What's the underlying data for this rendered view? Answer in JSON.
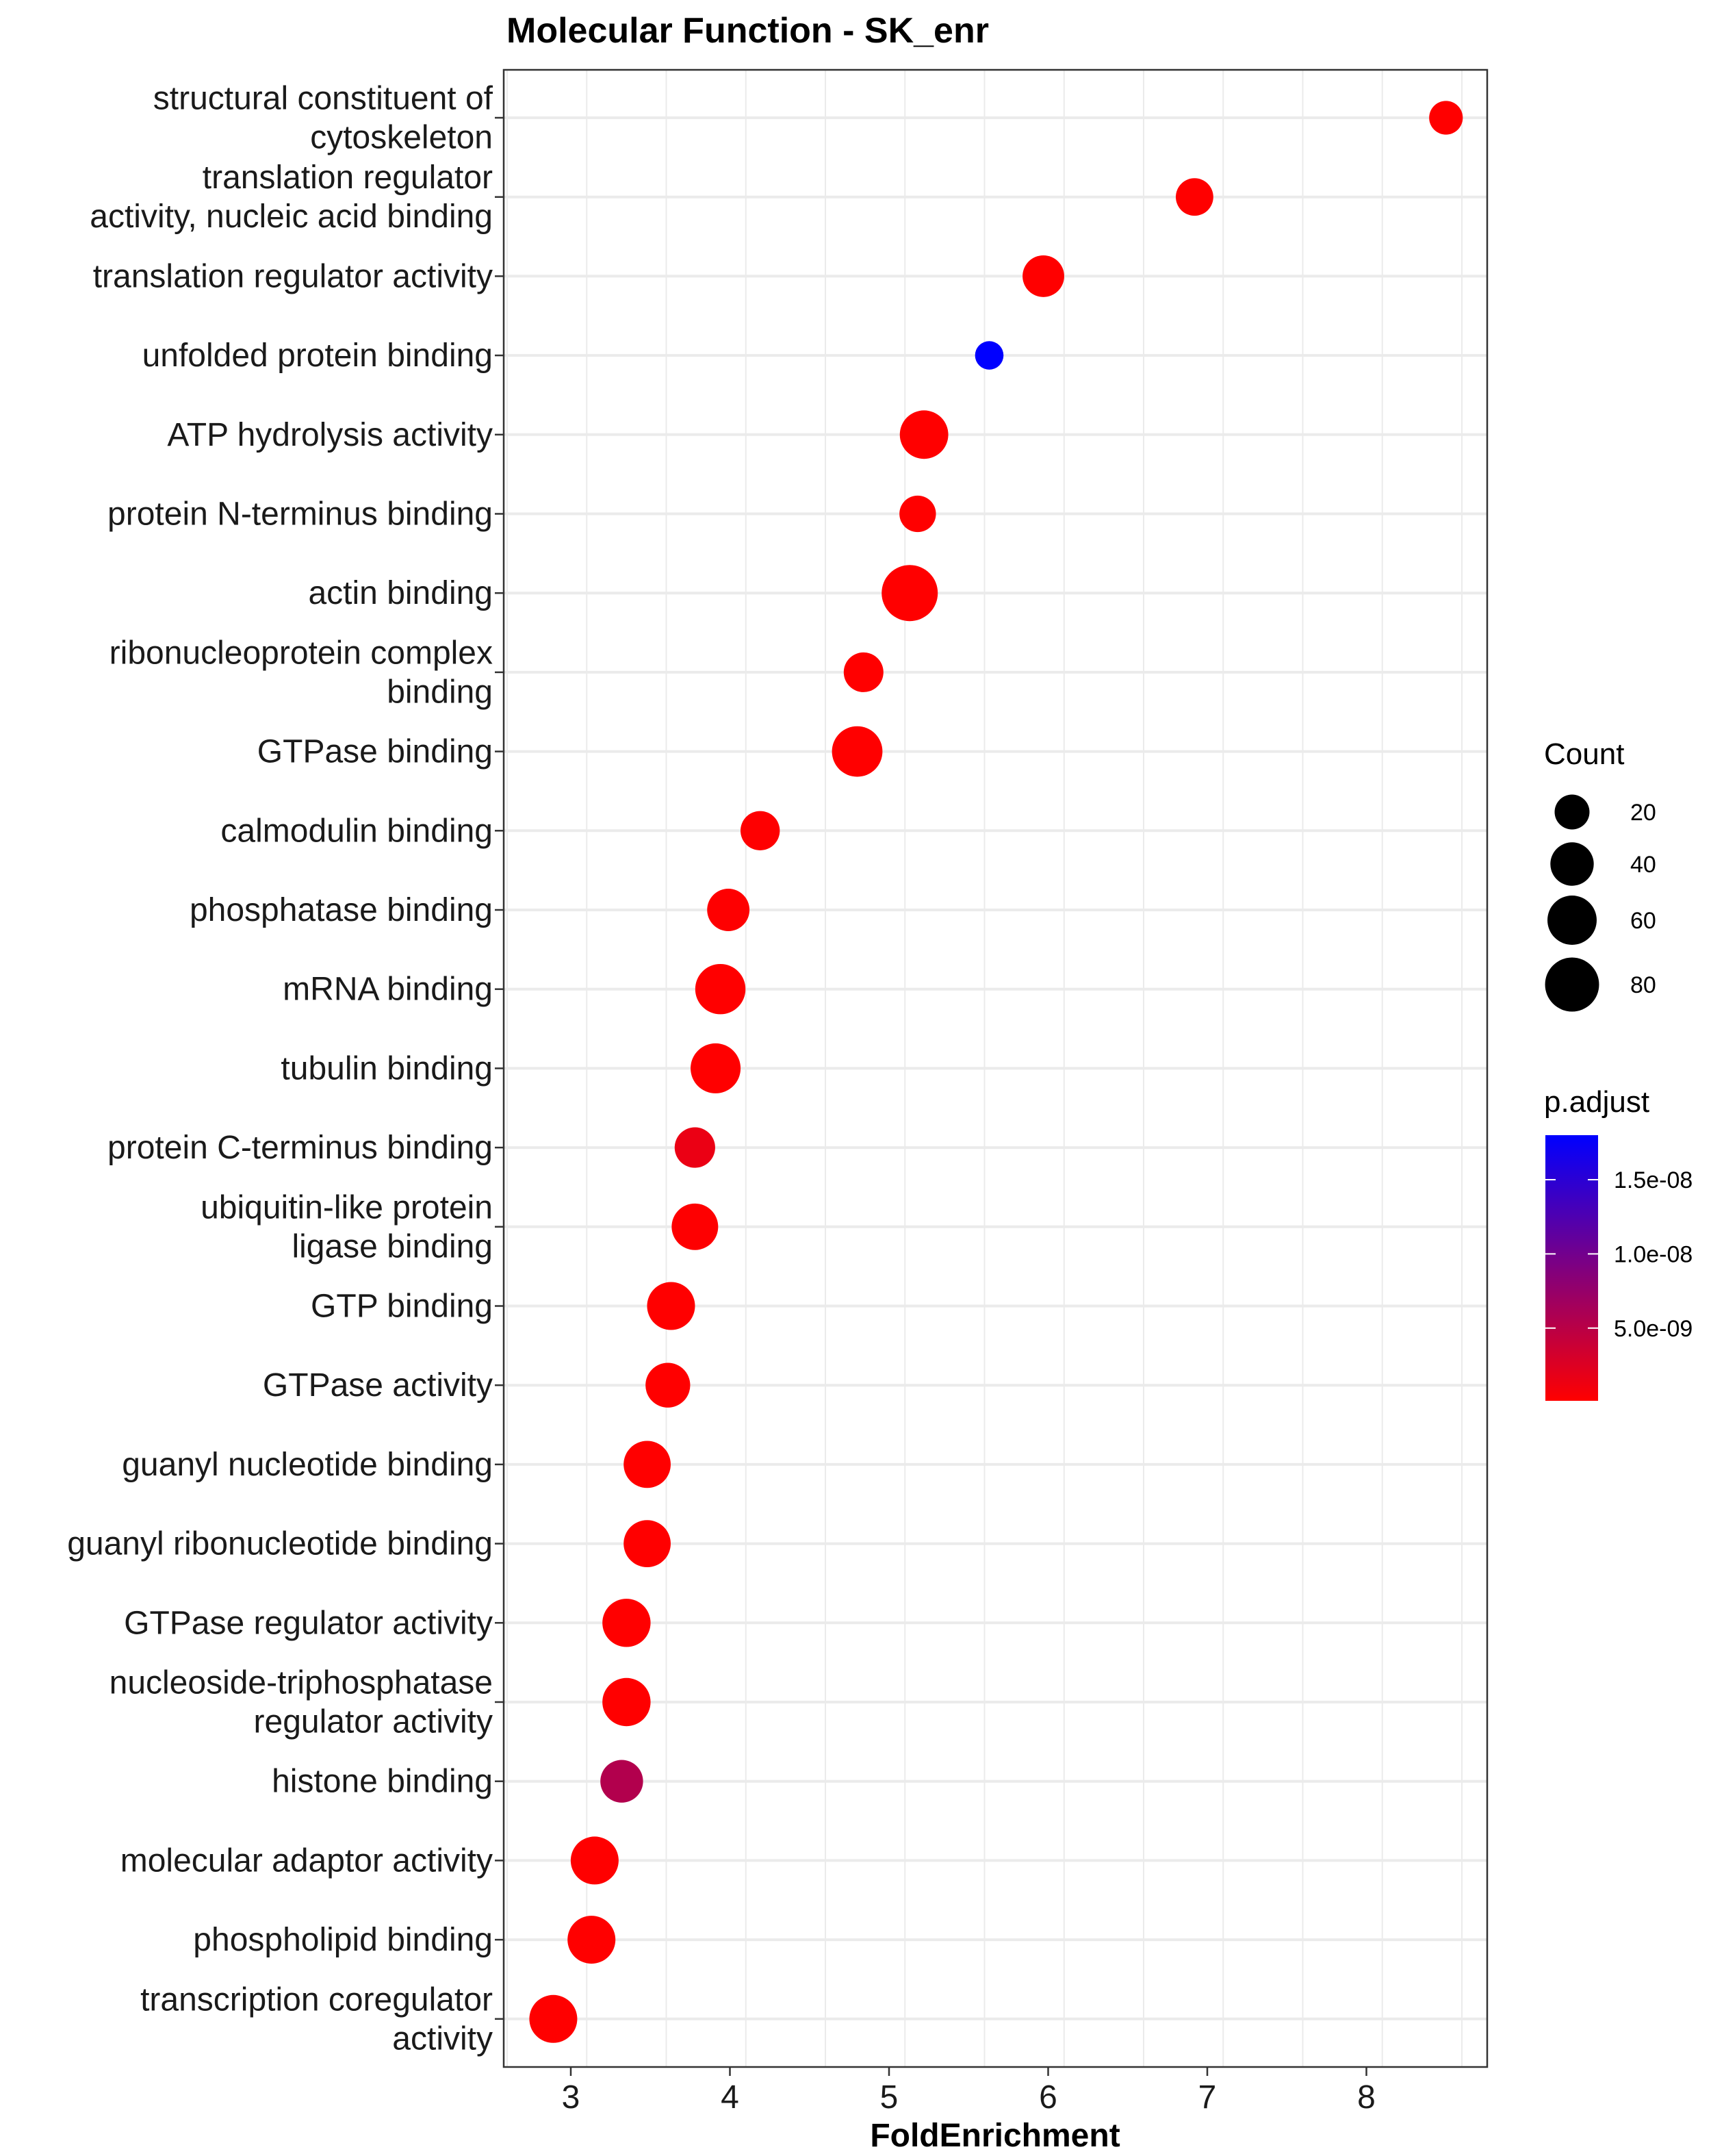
{
  "chart_data": {
    "type": "scatter",
    "title": "Molecular Function - SK_enr",
    "xlabel": "FoldEnrichment",
    "ylabel": "",
    "xlim": [
      2.6,
      8.8
    ],
    "xticks": [
      3,
      4,
      5,
      6,
      7,
      8
    ],
    "grid": true,
    "legend_position": "right",
    "categories": [
      [
        "structural constituent of",
        "cytoskeleton"
      ],
      [
        "translation regulator",
        "activity, nucleic acid binding"
      ],
      [
        "translation regulator activity"
      ],
      [
        "unfolded protein binding"
      ],
      [
        "ATP hydrolysis activity"
      ],
      [
        "protein N-terminus binding"
      ],
      [
        "actin binding"
      ],
      [
        "ribonucleoprotein complex",
        "binding"
      ],
      [
        "GTPase binding"
      ],
      [
        "calmodulin binding"
      ],
      [
        "phosphatase binding"
      ],
      [
        "mRNA binding"
      ],
      [
        "tubulin binding"
      ],
      [
        "protein C-terminus binding"
      ],
      [
        "ubiquitin-like protein",
        "ligase binding"
      ],
      [
        "GTP binding"
      ],
      [
        "GTPase activity"
      ],
      [
        "guanyl nucleotide binding"
      ],
      [
        "guanyl ribonucleotide binding"
      ],
      [
        "GTPase regulator activity"
      ],
      [
        "nucleoside-triphosphatase",
        "regulator activity"
      ],
      [
        "histone binding"
      ],
      [
        "molecular adaptor activity"
      ],
      [
        "phospholipid binding"
      ],
      [
        "transcription coregulator",
        "activity"
      ]
    ],
    "points": [
      {
        "x": 8.5,
        "count": 18,
        "p_adjust": 1e-10
      },
      {
        "x": 6.92,
        "count": 25,
        "p_adjust": 1e-10
      },
      {
        "x": 5.97,
        "count": 35,
        "p_adjust": 1e-10
      },
      {
        "x": 5.63,
        "count": 12,
        "p_adjust": 1.8e-08
      },
      {
        "x": 5.22,
        "count": 57,
        "p_adjust": 1e-10
      },
      {
        "x": 5.18,
        "count": 23,
        "p_adjust": 1e-10
      },
      {
        "x": 5.13,
        "count": 90,
        "p_adjust": 1e-10
      },
      {
        "x": 4.84,
        "count": 30,
        "p_adjust": 1e-10
      },
      {
        "x": 4.8,
        "count": 65,
        "p_adjust": 1e-10
      },
      {
        "x": 4.19,
        "count": 29,
        "p_adjust": 2e-10
      },
      {
        "x": 3.99,
        "count": 37,
        "p_adjust": 2e-10
      },
      {
        "x": 3.94,
        "count": 64,
        "p_adjust": 1e-10
      },
      {
        "x": 3.91,
        "count": 63,
        "p_adjust": 1e-10
      },
      {
        "x": 3.78,
        "count": 32,
        "p_adjust": 1.5e-09
      },
      {
        "x": 3.78,
        "count": 50,
        "p_adjust": 2e-10
      },
      {
        "x": 3.63,
        "count": 55,
        "p_adjust": 1e-10
      },
      {
        "x": 3.61,
        "count": 44,
        "p_adjust": 1e-10
      },
      {
        "x": 3.48,
        "count": 52,
        "p_adjust": 1e-10
      },
      {
        "x": 3.48,
        "count": 52,
        "p_adjust": 1e-10
      },
      {
        "x": 3.35,
        "count": 56,
        "p_adjust": 1e-10
      },
      {
        "x": 3.35,
        "count": 56,
        "p_adjust": 1e-10
      },
      {
        "x": 3.32,
        "count": 38,
        "p_adjust": 5.5e-09
      },
      {
        "x": 3.15,
        "count": 55,
        "p_adjust": 1e-10
      },
      {
        "x": 3.13,
        "count": 55,
        "p_adjust": 1e-10
      },
      {
        "x": 2.89,
        "count": 55,
        "p_adjust": 1e-10
      }
    ],
    "size_legend": {
      "title": "Count",
      "values": [
        20,
        40,
        60,
        80
      ]
    },
    "color_legend": {
      "title": "p.adjust",
      "min": 1e-10,
      "max": 1.8e-08,
      "ticks": [
        {
          "value": 5e-09,
          "label": "5.0e-09"
        },
        {
          "value": 1e-08,
          "label": "1.0e-08"
        },
        {
          "value": 1.5e-08,
          "label": "1.5e-08"
        }
      ],
      "low_color": "#ff0000",
      "high_color": "#0000ff"
    }
  }
}
